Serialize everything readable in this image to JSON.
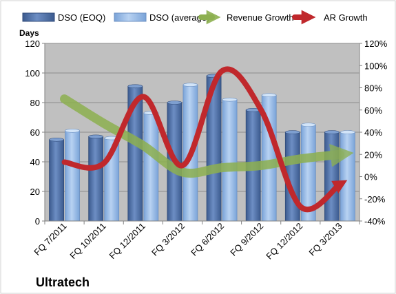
{
  "chart_data": {
    "type": "bar",
    "title": "Ultratech",
    "ylabel": "Days",
    "categories": [
      "FQ 7/2011",
      "FQ 10/2011",
      "FQ 12/2011",
      "FQ 3/2012",
      "FQ 6/2012",
      "FQ 9/2012",
      "FQ 12/2012",
      "FQ 3/2013"
    ],
    "ylim": [
      0,
      120
    ],
    "y2lim": [
      -0.4,
      1.2
    ],
    "y_ticks": [
      0,
      20,
      40,
      60,
      80,
      100,
      120
    ],
    "y2_ticks": [
      "-40%",
      "-20%",
      "0%",
      "20%",
      "40%",
      "60%",
      "80%",
      "100%",
      "120%"
    ],
    "series": [
      {
        "name": "DSO (EOQ)",
        "type": "bar",
        "axis": "left",
        "color": "#4f6fa3",
        "values": [
          55,
          57,
          91,
          80,
          98,
          75,
          60,
          60
        ]
      },
      {
        "name": "DSO (average)",
        "type": "bar",
        "axis": "left",
        "color": "#8fb4e3",
        "values": [
          61,
          56,
          73,
          92,
          82,
          85,
          65,
          60
        ]
      },
      {
        "name": "Revenue Growth",
        "type": "line",
        "axis": "right",
        "color": "#8db050",
        "values": [
          0.7,
          0.48,
          0.28,
          0.04,
          0.08,
          0.1,
          0.16,
          0.2
        ]
      },
      {
        "name": "AR Growth",
        "type": "line",
        "axis": "right",
        "color": "#c0282c",
        "values": [
          0.13,
          0.12,
          0.72,
          0.1,
          0.95,
          0.6,
          -0.27,
          -0.07
        ]
      }
    ],
    "grid": true,
    "legend": "top"
  },
  "colors": {
    "plot_background": "#c0c0c0",
    "dso_eoq": "#4f6fa3",
    "dso_average": "#8fb4e3",
    "revenue_growth": "#8db050",
    "ar_growth": "#c0282c"
  }
}
